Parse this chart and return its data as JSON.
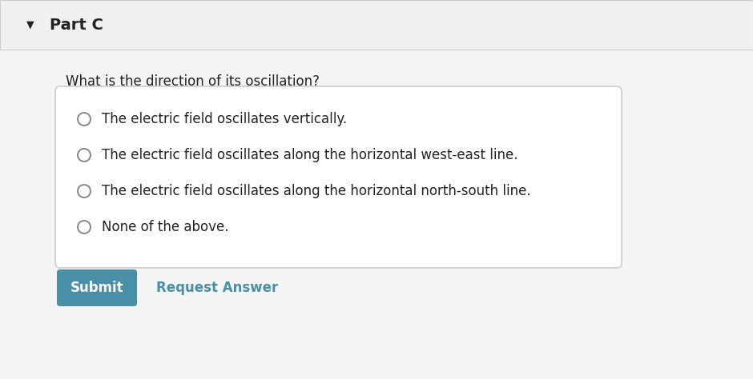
{
  "bg_color": "#f5f5f5",
  "white_bg": "#ffffff",
  "header_bg": "#f0f0f0",
  "header_text": "Part C",
  "header_arrow": "▼",
  "question": "What is the direction of its oscillation?",
  "options": [
    "The electric field oscillates vertically.",
    "The electric field oscillates along the horizontal west-east line.",
    "The electric field oscillates along the horizontal north-south line.",
    "None of the above."
  ],
  "submit_bg": "#4a8fa8",
  "submit_text": "Submit",
  "submit_text_color": "#ffffff",
  "request_answer_text": "Request Answer",
  "request_answer_color": "#4a8fa8",
  "box_border_color": "#cccccc",
  "radio_color": "#888888",
  "text_color": "#222222",
  "question_font_size": 12,
  "option_font_size": 12,
  "header_font_size": 14
}
